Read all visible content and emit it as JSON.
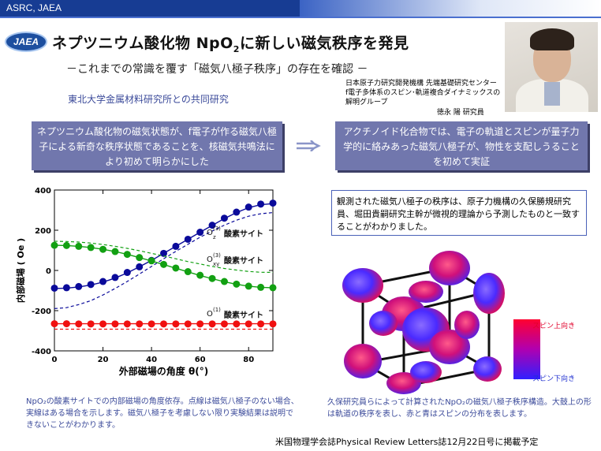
{
  "header": {
    "org_label": "ASRC, JAEA"
  },
  "logo": {
    "text": "JAEA"
  },
  "title": {
    "main_before": "ネプツニウム酸化物 NpO",
    "sub": "2",
    "main_after": "に新しい磁気秩序を発見"
  },
  "subtitle": "－これまでの常識を覆す「磁気八極子秩序」の存在を確認 －",
  "collaboration": "東北大学金属材料研究所との共同研究",
  "organization": {
    "line1": "日本原子力研究開発機構 先端基礎研究センター",
    "line2": "f電子多体系のスピン･軌道複合ダイナミックスの解明グループ",
    "person": "徳永 陽 研究員"
  },
  "left_box": "ネプツニウム酸化物の磁気状態が、f電子が作る磁気八極子による新奇な秩序状態であることを、核磁気共鳴法により初めて明らかにした",
  "right_box": "アクチノイド化合物では、電子の軌道とスピンが量子力学的に絡みあった磁気八極子が、物性を支配しうることを初めて実証",
  "observation": "観測された磁気八極子の秩序は、原子力機構の久保勝規研究員、堀田貴嗣研究主幹が微視的理論から予測したものと一致することがわかりました。",
  "caption_left": "NpO₂の酸素サイトでの内部磁場の角度依存。点線は磁気八極子のない場合、実線はある場合を示します。磁気八極子を考慮しない限り実験結果は説明できないことがわかります。",
  "caption_right": "久保研究員らによって計算されたNpO₂の磁気八極子秩序構造。大鼓上の形は軌道の秩序を表し、赤と青はスピンの分布を表します。",
  "footer": "米国物理学会誌Physical Review Letters誌12月22日号に掲載予定",
  "scale": {
    "top": "スピン上向き",
    "bottom": "スピン下向き",
    "top_color": "#e0002a",
    "bottom_color": "#2030d0"
  },
  "chart_data": {
    "type": "scatter",
    "ylabel": "内部磁場 ( Oe )",
    "xlabel": "外部磁場の角度 θ(°)",
    "xlim": [
      0,
      90
    ],
    "ylim": [
      -400,
      400
    ],
    "xticks": [
      0,
      20,
      40,
      60,
      80
    ],
    "yticks": [
      -400,
      -200,
      0,
      200,
      400
    ],
    "x": [
      0,
      5,
      10,
      15,
      20,
      25,
      30,
      35,
      40,
      45,
      50,
      55,
      60,
      65,
      70,
      75,
      80,
      85,
      90
    ],
    "series": [
      {
        "name": "O_z^(3) 酸素サイト",
        "label": "酸素サイト",
        "color": "#0a0a9a",
        "values": [
          -88,
          -86,
          -80,
          -70,
          -55,
          -35,
          -10,
          18,
          50,
          85,
          120,
          155,
          190,
          225,
          260,
          290,
          315,
          330,
          335
        ],
        "solid": [
          -90,
          -88,
          -82,
          -72,
          -58,
          -38,
          -12,
          18,
          50,
          85,
          120,
          155,
          190,
          224,
          258,
          288,
          312,
          327,
          332
        ],
        "dashed": [
          -190,
          -185,
          -170,
          -150,
          -122,
          -90,
          -55,
          -18,
          20,
          58,
          95,
          130,
          165,
          196,
          225,
          250,
          270,
          282,
          288
        ]
      },
      {
        "name": "O_xy^(3) 酸素サイト",
        "label": "酸素サイト",
        "color": "#12a012",
        "values": [
          125,
          124,
          120,
          114,
          105,
          94,
          80,
          64,
          48,
          30,
          12,
          -6,
          -24,
          -40,
          -55,
          -68,
          -78,
          -84,
          -86
        ],
        "solid": [
          125,
          124,
          120,
          114,
          105,
          94,
          80,
          64,
          47,
          29,
          11,
          -7,
          -25,
          -41,
          -56,
          -69,
          -78,
          -84,
          -86
        ],
        "dashed": [
          145,
          144,
          141,
          136,
          129,
          120,
          110,
          98,
          85,
          72,
          58,
          44,
          32,
          20,
          10,
          2,
          -5,
          -9,
          -10
        ]
      },
      {
        "name": "O^(1) 酸素サイト",
        "label": "酸素サイト",
        "color": "#f01010",
        "values": [
          -265,
          -265,
          -266,
          -266,
          -266,
          -266,
          -266,
          -266,
          -266,
          -266,
          -266,
          -266,
          -266,
          -266,
          -266,
          -266,
          -266,
          -266,
          -266
        ],
        "solid": [
          -265,
          -265,
          -265,
          -265,
          -265,
          -265,
          -265,
          -265,
          -265,
          -265,
          -265,
          -265,
          -265,
          -265,
          -265,
          -265,
          -265,
          -265,
          -265
        ],
        "dashed": [
          -292,
          -292,
          -292,
          -292,
          -292,
          -292,
          -292,
          -292,
          -292,
          -292,
          -292,
          -292,
          -292,
          -292,
          -292,
          -292,
          -292,
          -292,
          -292
        ]
      }
    ],
    "series_labels": [
      {
        "sym": "O",
        "sup": "(3)",
        "sub": "z"
      },
      {
        "sym": "O",
        "sup": "(3)",
        "sub": "xy"
      },
      {
        "sym": "O",
        "sup": "(1)",
        "sub": ""
      }
    ]
  }
}
